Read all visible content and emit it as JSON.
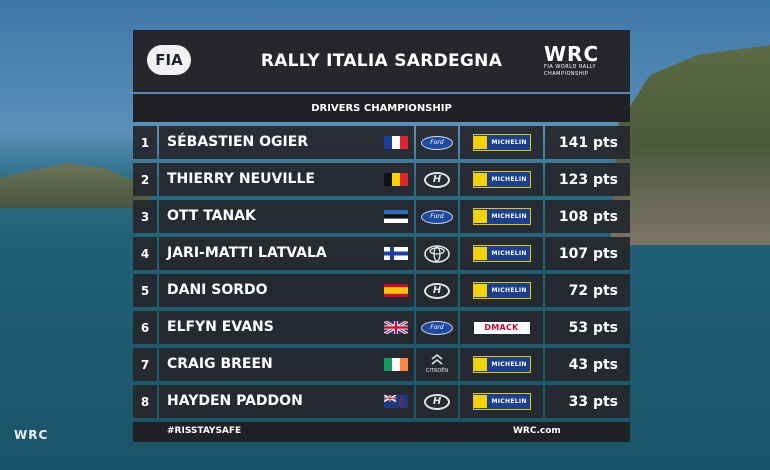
{
  "header": {
    "fia_logo_text": "FIA",
    "title": "RALLY ITALIA SARDEGNA",
    "wrc_logo_text": "WRC",
    "wrc_logo_subtext": "FIA WORLD RALLY CHAMPIONSHIP"
  },
  "subheader": "DRIVERS CHAMPIONSHIP",
  "rows": [
    {
      "pos": "1",
      "name": "SÉBASTIEN OGIER",
      "flag": "France",
      "make": "Ford",
      "make_label": "Ford",
      "tyre": "Michelin",
      "tyre_label": "MICHELIN",
      "pts": "141 pts"
    },
    {
      "pos": "2",
      "name": "THIERRY NEUVILLE",
      "flag": "Belgium",
      "make": "Hyundai",
      "make_label": "H",
      "tyre": "Michelin",
      "tyre_label": "MICHELIN",
      "pts": "123 pts"
    },
    {
      "pos": "3",
      "name": "OTT TANAK",
      "flag": "Estonia",
      "make": "Ford",
      "make_label": "Ford",
      "tyre": "Michelin",
      "tyre_label": "MICHELIN",
      "pts": "108 pts"
    },
    {
      "pos": "4",
      "name": "JARI-MATTI LATVALA",
      "flag": "Finland",
      "make": "Toyota",
      "make_label": "",
      "tyre": "Michelin",
      "tyre_label": "MICHELIN",
      "pts": "107 pts"
    },
    {
      "pos": "5",
      "name": "DANI SORDO",
      "flag": "Spain",
      "make": "Hyundai",
      "make_label": "H",
      "tyre": "Michelin",
      "tyre_label": "MICHELIN",
      "pts": "72 pts"
    },
    {
      "pos": "6",
      "name": "ELFYN EVANS",
      "flag": "United Kingdom",
      "make": "Ford",
      "make_label": "Ford",
      "tyre": "DMACK",
      "tyre_label": "DMACK",
      "pts": "53 pts"
    },
    {
      "pos": "7",
      "name": "CRAIG BREEN",
      "flag": "Ireland",
      "make": "Citroen",
      "make_label": "CITROËN",
      "tyre": "Michelin",
      "tyre_label": "MICHELIN",
      "pts": "43 pts"
    },
    {
      "pos": "8",
      "name": "HAYDEN PADDON",
      "flag": "New Zealand",
      "make": "Hyundai",
      "make_label": "H",
      "tyre": "Michelin",
      "tyre_label": "MICHELIN",
      "pts": "33 pts"
    }
  ],
  "footer": {
    "hashtag": "#RISSTAYSAFE",
    "site": "WRC.com"
  },
  "corner_logo": "WRC",
  "colors": {
    "panel": "#26272c",
    "michelin_blue": "#1b3f8f",
    "michelin_yellow": "#f3d400",
    "dmack_red": "#d3082e",
    "ford_blue": "#1e4aa2"
  }
}
